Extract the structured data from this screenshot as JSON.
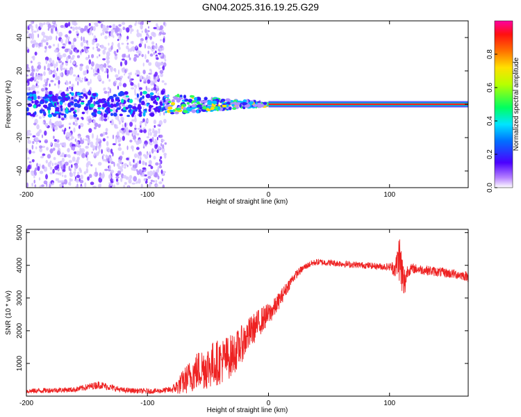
{
  "figure_title": "GN04.2025.316.19.25.G29",
  "chart_data": [
    {
      "type": "heatmap",
      "title": "GN04.2025.316.19.25.G29",
      "xlabel": "Height of straight line (km)",
      "ylabel": "Frequency (Hz)",
      "xlim": [
        -200,
        165
      ],
      "ylim": [
        -50,
        50
      ],
      "xticks": [
        -200,
        -100,
        0,
        100
      ],
      "yticks": [
        -40,
        -20,
        0,
        20,
        40
      ],
      "colorbar": {
        "label": "Normalized spectral amplitude",
        "range": [
          0,
          1
        ],
        "ticks": [
          0.0,
          0.2,
          0.4,
          0.6,
          0.8
        ]
      },
      "features": [
        {
          "name": "noise region",
          "x_range": [
            -200,
            -85
          ],
          "freq_range": [
            -50,
            50
          ],
          "amplitude": "low, scattered"
        },
        {
          "name": "emerging signal",
          "x_range": [
            -85,
            0
          ],
          "center_freq": 0,
          "amplitude": "medium"
        },
        {
          "name": "strong carrier",
          "x_range": [
            0,
            165
          ],
          "center_freq": 0,
          "amplitude": 1.0
        }
      ]
    },
    {
      "type": "line",
      "xlabel": "Height of straight line (km)",
      "ylabel": "SNR (10 * v/v)",
      "xlim": [
        -200,
        165
      ],
      "ylim": [
        0,
        5100
      ],
      "xticks": [
        -200,
        -100,
        0,
        100
      ],
      "yticks": [
        1000,
        2000,
        3000,
        4000,
        5000
      ],
      "series": [
        {
          "name": "SNR",
          "color": "#ee2222",
          "x": [
            -200,
            -180,
            -160,
            -140,
            -120,
            -100,
            -90,
            -80,
            -75,
            -70,
            -65,
            -60,
            -55,
            -50,
            -45,
            -40,
            -35,
            -30,
            -25,
            -20,
            -15,
            -10,
            -5,
            0,
            5,
            10,
            15,
            20,
            25,
            30,
            35,
            40,
            50,
            60,
            70,
            80,
            90,
            100,
            105,
            108,
            110,
            112,
            115,
            120,
            130,
            140,
            150,
            160,
            165
          ],
          "y": [
            150,
            180,
            200,
            350,
            180,
            150,
            160,
            200,
            300,
            450,
            600,
            750,
            850,
            900,
            1000,
            1050,
            1150,
            1250,
            1450,
            1700,
            1950,
            2150,
            2350,
            2500,
            2700,
            3000,
            3300,
            3600,
            3800,
            3950,
            4050,
            4100,
            4080,
            4050,
            4020,
            4000,
            3970,
            3950,
            3900,
            4300,
            3800,
            3400,
            3850,
            3900,
            3850,
            3800,
            3750,
            3700,
            3650
          ],
          "noise_amplitude": [
            80,
            80,
            80,
            120,
            80,
            80,
            80,
            100,
            250,
            400,
            500,
            600,
            650,
            700,
            700,
            700,
            700,
            650,
            600,
            550,
            500,
            450,
            400,
            350,
            300,
            250,
            200,
            150,
            120,
            100,
            100,
            100,
            100,
            100,
            100,
            100,
            100,
            120,
            300,
            800,
            800,
            600,
            200,
            150,
            150,
            150,
            150,
            150,
            150
          ]
        }
      ]
    }
  ]
}
